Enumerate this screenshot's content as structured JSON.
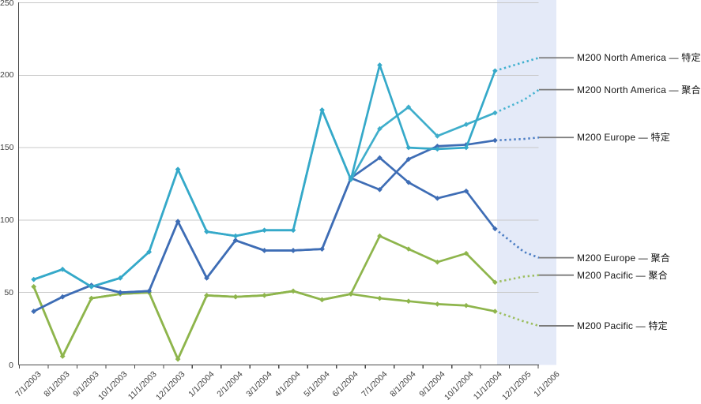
{
  "chart_data": {
    "type": "line",
    "title": "",
    "xlabel": "",
    "ylabel": "",
    "ylim": [
      0,
      250
    ],
    "grid": "horizontal",
    "legend_position": "right-leader-labels",
    "y_ticks": [
      0,
      50,
      100,
      150,
      200,
      250
    ],
    "categories": [
      "7/1/2003",
      "8/1/2003",
      "9/1/2003",
      "10/1/2003",
      "11/1/2003",
      "12/1/2003",
      "1/1/2004",
      "2/1/2004",
      "3/1/2004",
      "4/1/2004",
      "5/1/2004",
      "6/1/2004",
      "7/1/2004",
      "8/1/2004",
      "9/1/2004",
      "10/1/2004",
      "11/1/2004",
      "12/1/2005",
      "1/1/2006"
    ],
    "history_categories_count": 17,
    "forecast_categories": [
      "12/1/2005",
      "1/1/2006"
    ],
    "series": [
      {
        "label": "M200 North America — 特定",
        "color": "#35A9C9",
        "forecast_color": "#3FB0CF",
        "solid": [
          59,
          66,
          54,
          60,
          78,
          135,
          92,
          89,
          93,
          93,
          176,
          128,
          207,
          150,
          149,
          150,
          203
        ],
        "forecast": [
          209,
          212
        ]
      },
      {
        "label": "M200 North America — 聚合",
        "color": "#3FAECB",
        "forecast_color": "#49B4D1",
        "solid": [
          59,
          66,
          54,
          60,
          78,
          135,
          92,
          89,
          93,
          93,
          176,
          128,
          163,
          178,
          158,
          166,
          174
        ],
        "forecast": [
          183,
          190
        ]
      },
      {
        "label": "M200 Europe — 特定",
        "color": "#3E6DB5",
        "forecast_color": "#4C7EC4",
        "solid": [
          37,
          47,
          55,
          50,
          51,
          99,
          60,
          86,
          79,
          79,
          80,
          129,
          121,
          142,
          151,
          152,
          155
        ],
        "forecast": [
          156,
          157
        ]
      },
      {
        "label": "M200 Europe — 聚合",
        "color": "#3E6DB5",
        "forecast_color": "#4C7EC4",
        "solid": [
          37,
          47,
          55,
          50,
          51,
          99,
          60,
          86,
          79,
          79,
          80,
          129,
          143,
          126,
          115,
          120,
          94
        ],
        "forecast": [
          78,
          74
        ]
      },
      {
        "label": "M200 Pacific — 聚合",
        "color": "#8EB54C",
        "forecast_color": "#9CBE5F",
        "solid": [
          54,
          6,
          46,
          49,
          50,
          4,
          48,
          47,
          48,
          51,
          45,
          49,
          89,
          80,
          71,
          77,
          57
        ],
        "forecast": [
          61,
          62
        ]
      },
      {
        "label": "M200 Pacific — 特定",
        "color": "#8EB54C",
        "forecast_color": "#9CBE5F",
        "solid": [
          54,
          6,
          46,
          49,
          50,
          4,
          48,
          47,
          48,
          51,
          45,
          49,
          46,
          44,
          42,
          41,
          37
        ],
        "forecast": [
          30,
          27
        ]
      }
    ],
    "colors": {
      "forecast_band": "#E4EAF8",
      "gridline": "#C8C8C8",
      "axis": "#4A4A4A",
      "leader_line": "#7A7A7A",
      "axis_text": "#3F3F3F",
      "label_text": "#141414"
    }
  }
}
